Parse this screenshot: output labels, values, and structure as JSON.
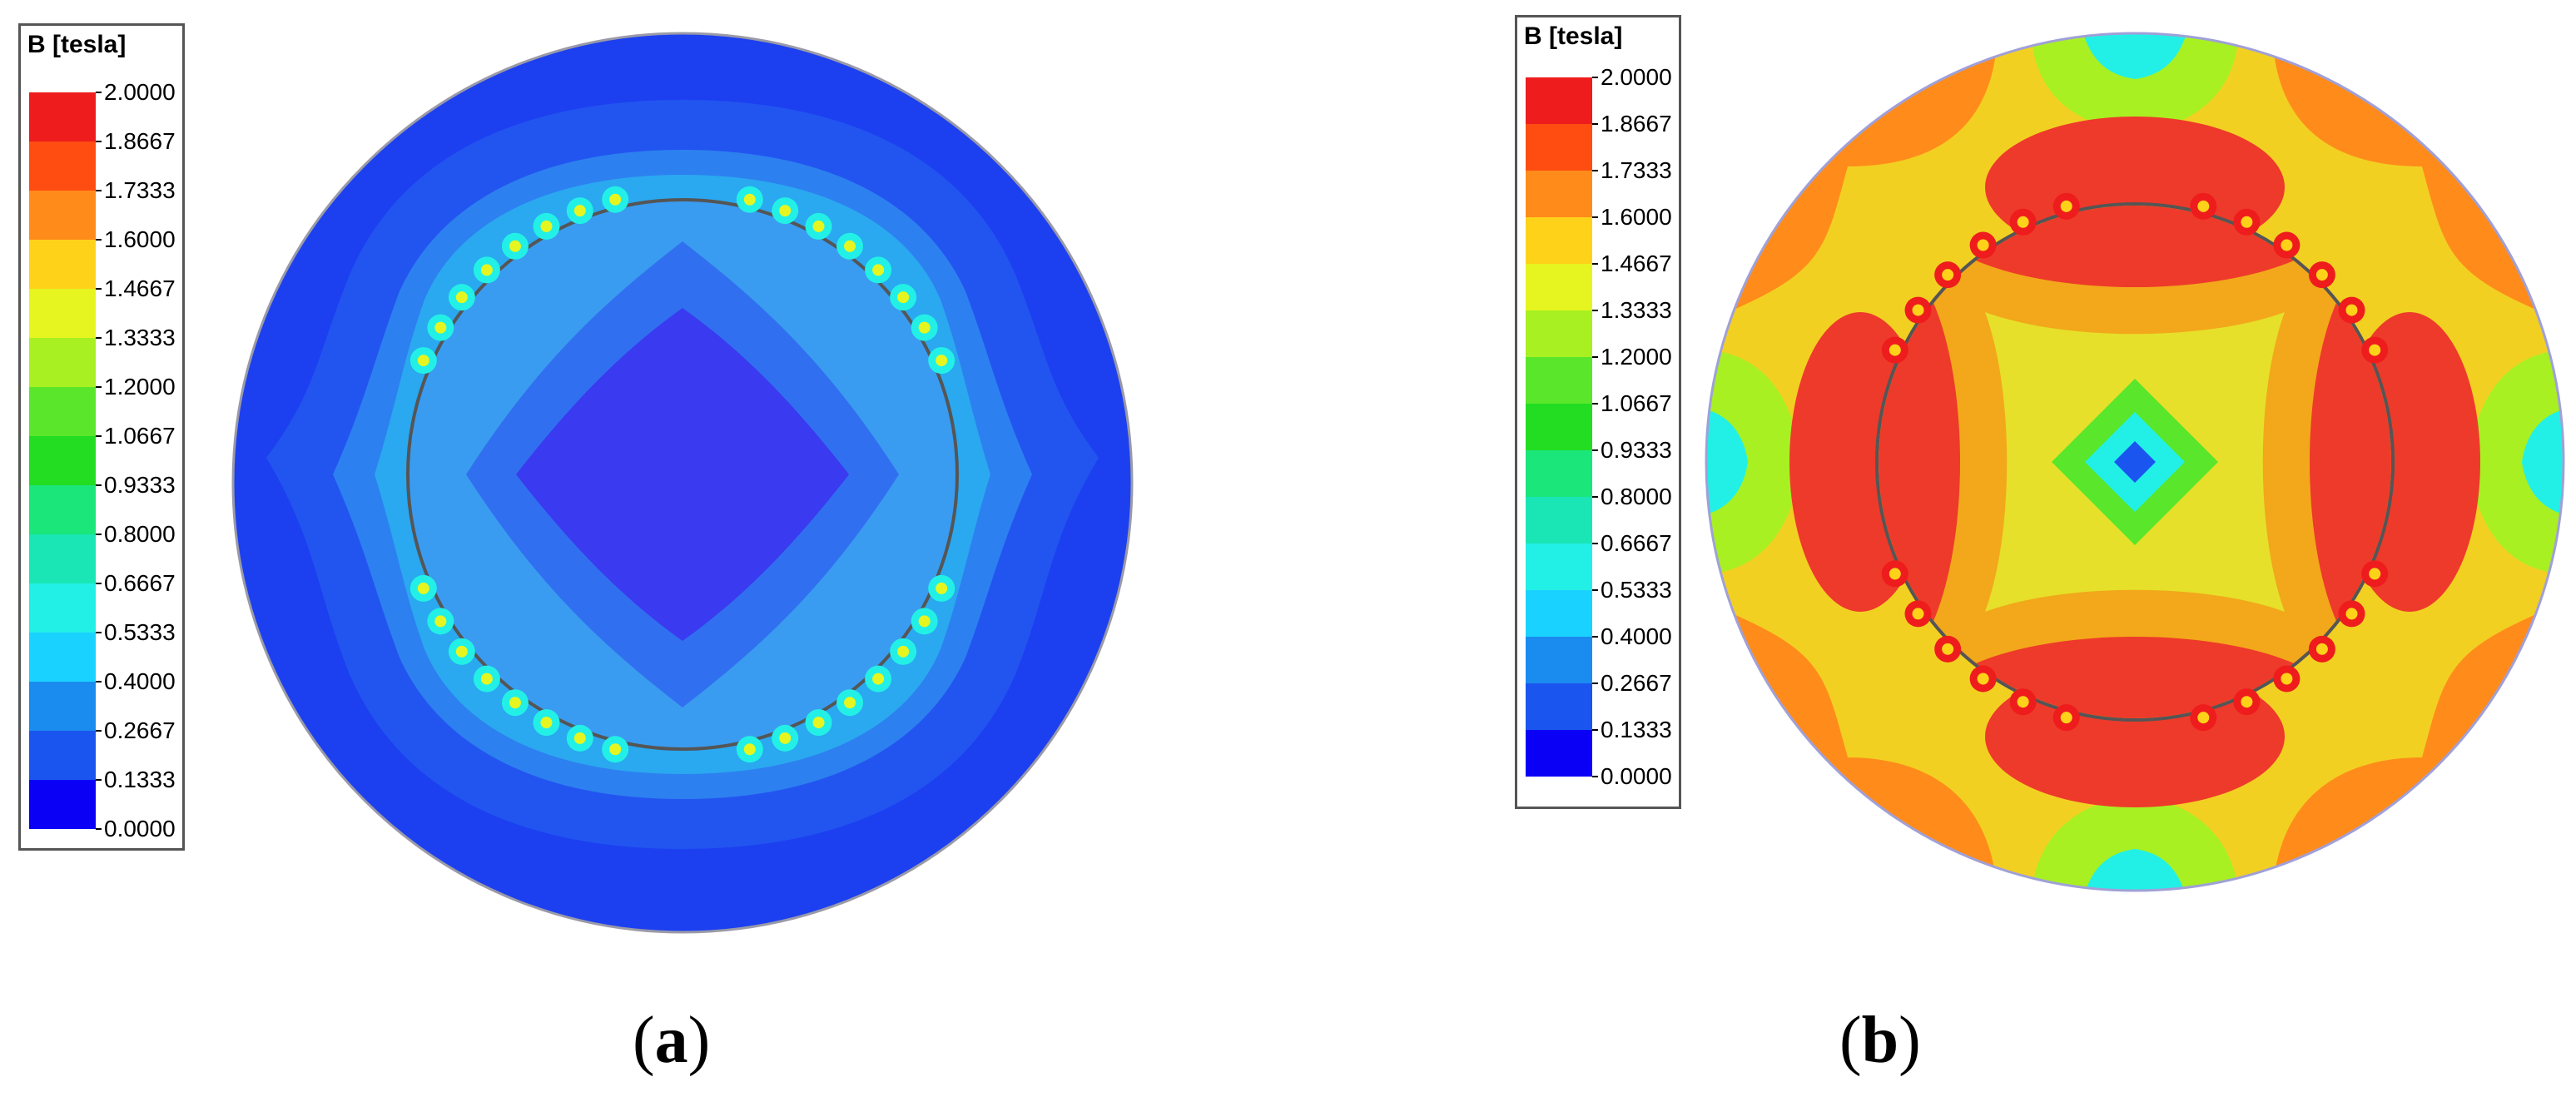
{
  "panels": [
    {
      "id": "a",
      "caption_letter": "a",
      "legend_title": "B [tesla]",
      "legend_ticks": [
        "2.0000",
        "1.8667",
        "1.7333",
        "1.6000",
        "1.4667",
        "1.3333",
        "1.2000",
        "1.0667",
        "0.9333",
        "0.8000",
        "0.6667",
        "0.5333",
        "0.4000",
        "0.2667",
        "0.1333",
        "0.0000"
      ]
    },
    {
      "id": "b",
      "caption_letter": "b",
      "legend_title": "B [tesla]",
      "legend_ticks": [
        "2.0000",
        "1.8667",
        "1.7333",
        "1.6000",
        "1.4667",
        "1.3333",
        "1.2000",
        "1.0667",
        "0.9333",
        "0.8000",
        "0.6667",
        "0.5333",
        "0.4000",
        "0.2667",
        "0.1333",
        "0.0000"
      ]
    }
  ],
  "colormap": [
    "#ee1c1c",
    "#ff4d12",
    "#ff8c1a",
    "#ffd21a",
    "#e6f51f",
    "#a8f022",
    "#5ae62a",
    "#22dd22",
    "#1ae67a",
    "#1ae6b5",
    "#22f0e6",
    "#1ad2ff",
    "#1a8cf0",
    "#1a55f0",
    "#0a00f5"
  ],
  "plot_colors": {
    "a_outer": "#1c40f0",
    "a_band1": "#2255f0",
    "a_band2": "#2d80f0",
    "a_stator_ring": "#2aa8f0",
    "a_rotor": "#3a9cf0",
    "a_rotor_mid": "#3070f0",
    "a_center": "#3a3af0",
    "b_outer": "#ff8c1a",
    "b_yellow": "#f2d022",
    "b_green": "#a8f022",
    "b_red": "#ee3a2a",
    "b_rotor": "#f2a81a",
    "b_inner_yellow": "#e6e02a",
    "b_center_green": "#5ae62a",
    "b_center_cyan": "#22f0e6",
    "b_center_blue": "#1a55f0"
  }
}
